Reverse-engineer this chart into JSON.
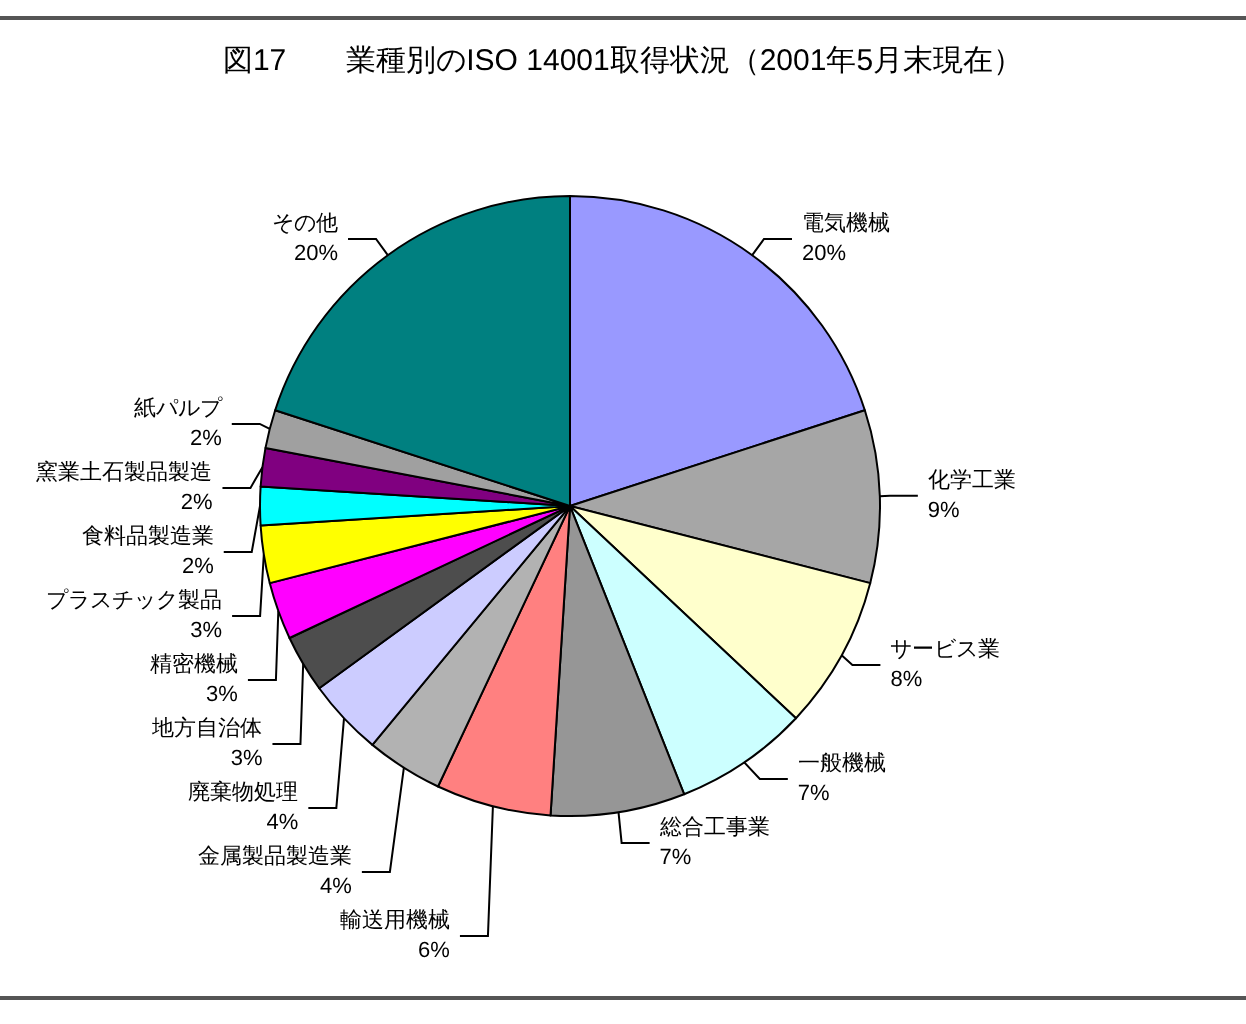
{
  "chart_data": {
    "type": "pie",
    "title": "図17　　業種別のISO 14001取得状況（2001年5月末現在）",
    "categories": [
      "電気機械",
      "化学工業",
      "サービス業",
      "一般機械",
      "総合工事業",
      "輸送用機械",
      "金属製品製造業",
      "廃棄物処理",
      "地方自治体",
      "精密機械",
      "プラスチック製品",
      "食料品製造業",
      "窯業土石製品製造",
      "紙パルプ",
      "その他"
    ],
    "values": [
      20,
      9,
      8,
      7,
      7,
      6,
      4,
      4,
      3,
      3,
      3,
      2,
      2,
      2,
      20
    ],
    "colors": [
      "#9999ff",
      "#a6a6a6",
      "#ffffcc",
      "#ccffff",
      "#969696",
      "#ff8080",
      "#b2b2b2",
      "#ccccff",
      "#4d4d4d",
      "#ff00ff",
      "#ffff00",
      "#00ffff",
      "#800080",
      "#a0a0a0",
      "#008080"
    ],
    "value_labels": [
      "20%",
      "9%",
      "8%",
      "7%",
      "7%",
      "6%",
      "4%",
      "4%",
      "3%",
      "3%",
      "3%",
      "2%",
      "2%",
      "2%",
      "20%"
    ],
    "legend": false
  }
}
